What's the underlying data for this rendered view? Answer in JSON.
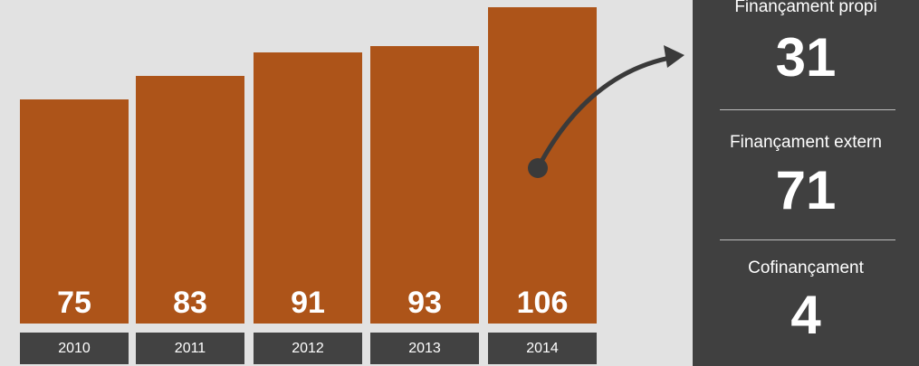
{
  "chart_data": {
    "type": "bar",
    "categories": [
      "2010",
      "2011",
      "2012",
      "2013",
      "2014"
    ],
    "values": [
      75,
      83,
      91,
      93,
      106
    ],
    "bar_color": "#ad5419",
    "ylim": [
      0,
      106
    ]
  },
  "panel": {
    "items": [
      {
        "label": "Finançament propi",
        "value": "31"
      },
      {
        "label": "Finançament extern",
        "value": "71"
      },
      {
        "label": "Cofinançament",
        "value": "4"
      }
    ]
  },
  "colors": {
    "background": "#e2e2e2",
    "panel": "#404040",
    "axis_cell": "#424242",
    "connector": "#3a3a3a"
  }
}
